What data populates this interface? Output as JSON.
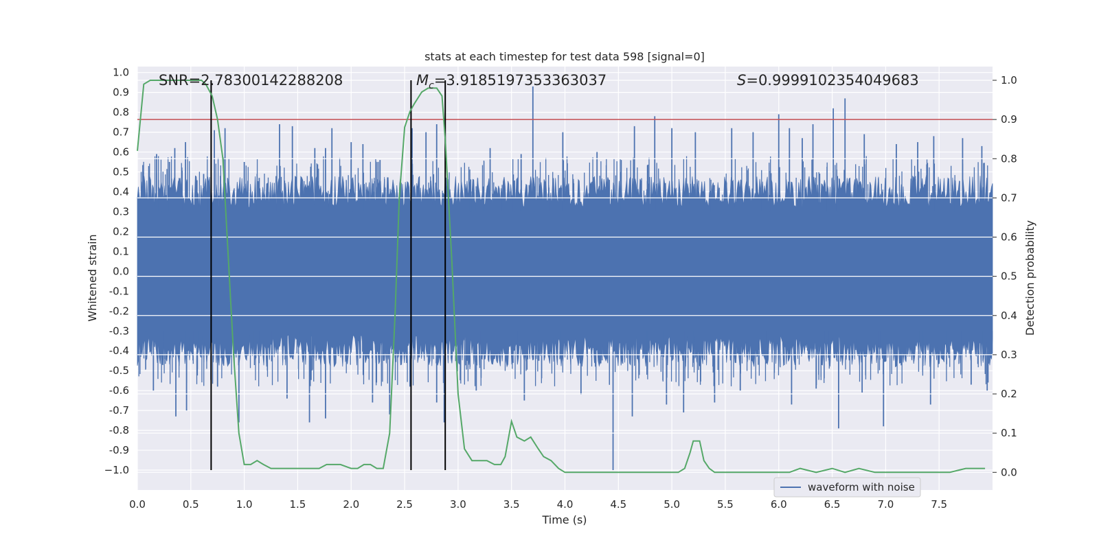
{
  "chart_data": {
    "type": "line",
    "title": "stats at each timestep for test data 598 [signal=0]",
    "xlabel": "Time (s)",
    "ylabel": "Whitened strain",
    "y2label": "Detection probability",
    "xlim": [
      0,
      8
    ],
    "ylim": [
      -1.1,
      1.03
    ],
    "y2lim": [
      -0.045,
      1.035
    ],
    "xticks": [
      "0.0",
      "0.5",
      "1.0",
      "1.5",
      "2.0",
      "2.5",
      "3.0",
      "3.5",
      "4.0",
      "4.5",
      "5.0",
      "5.5",
      "6.0",
      "6.5",
      "7.0",
      "7.5"
    ],
    "yticks": [
      "1.0",
      "0.9",
      "0.8",
      "0.7",
      "0.6",
      "0.5",
      "0.4",
      "0.3",
      "0.2",
      "0.1",
      "0.0",
      "-0.1",
      "-0.2",
      "-0.3",
      "-0.4",
      "-0.5",
      "-0.6",
      "-0.7",
      "-0.8",
      "-0.9",
      "−1.0"
    ],
    "y2ticks": [
      "0.0",
      "0.1",
      "0.2",
      "0.3",
      "0.4",
      "0.5",
      "0.6",
      "0.7",
      "0.8",
      "0.9",
      "1.0"
    ],
    "grid": true,
    "legend": {
      "position": "lower-right",
      "entries": [
        "waveform with noise"
      ]
    },
    "annotations": {
      "snr": "SNR=2.78300142288208",
      "mc_symbol": "M",
      "mc_sub": "c",
      "mc_value": "=3.9185197353363037",
      "s_symbol": "S",
      "s_value": "=0.9999102354049683"
    },
    "threshold": 0.9,
    "vlines": [
      0.69,
      2.56,
      2.88
    ],
    "series": [
      {
        "name": "waveform with noise",
        "color": "#4c72b0",
        "axis": "left",
        "envelope": {
          "upper_typical": 0.38,
          "lower_typical": -0.38,
          "spikes_up": [
            [
              0.05,
              0.5
            ],
            [
              0.18,
              0.59
            ],
            [
              0.3,
              0.55
            ],
            [
              0.35,
              0.62
            ],
            [
              0.45,
              0.65
            ],
            [
              0.62,
              0.49
            ],
            [
              0.72,
              0.71
            ],
            [
              0.82,
              0.72
            ],
            [
              1.0,
              0.55
            ],
            [
              1.14,
              0.47
            ],
            [
              1.33,
              0.74
            ],
            [
              1.45,
              0.73
            ],
            [
              1.66,
              0.62
            ],
            [
              1.76,
              0.62
            ],
            [
              1.82,
              0.72
            ],
            [
              2.0,
              0.65
            ],
            [
              2.11,
              0.64
            ],
            [
              2.27,
              0.56
            ],
            [
              2.57,
              0.72
            ],
            [
              2.7,
              0.7
            ],
            [
              2.8,
              0.74
            ],
            [
              3.3,
              0.62
            ],
            [
              3.59,
              0.59
            ],
            [
              3.7,
              0.93
            ],
            [
              3.98,
              0.7
            ],
            [
              4.3,
              0.6
            ],
            [
              4.65,
              0.73
            ],
            [
              4.84,
              0.78
            ],
            [
              5.0,
              0.72
            ],
            [
              5.22,
              0.7
            ],
            [
              5.56,
              0.72
            ],
            [
              5.76,
              0.7
            ],
            [
              6.0,
              0.79
            ],
            [
              6.1,
              0.72
            ],
            [
              6.22,
              0.67
            ],
            [
              6.32,
              0.74
            ],
            [
              6.51,
              0.82
            ],
            [
              6.62,
              0.87
            ],
            [
              6.8,
              0.69
            ],
            [
              7.1,
              0.64
            ],
            [
              7.3,
              0.65
            ],
            [
              7.45,
              0.68
            ],
            [
              7.72,
              0.67
            ],
            [
              7.9,
              0.63
            ]
          ],
          "spikes_down": [
            [
              0.03,
              -0.43
            ],
            [
              0.15,
              -0.6
            ],
            [
              0.36,
              -0.73
            ],
            [
              0.46,
              -0.7
            ],
            [
              0.75,
              -0.58
            ],
            [
              0.95,
              -0.76
            ],
            [
              1.4,
              -0.64
            ],
            [
              1.61,
              -0.76
            ],
            [
              1.76,
              -0.74
            ],
            [
              2.2,
              -0.66
            ],
            [
              2.36,
              -0.72
            ],
            [
              2.55,
              -0.58
            ],
            [
              2.8,
              -0.66
            ],
            [
              2.87,
              -0.76
            ],
            [
              3.17,
              -0.6
            ],
            [
              3.62,
              -0.65
            ],
            [
              4.15,
              -0.62
            ],
            [
              4.45,
              -1.0
            ],
            [
              4.63,
              -0.73
            ],
            [
              4.95,
              -0.67
            ],
            [
              5.11,
              -0.71
            ],
            [
              5.4,
              -0.66
            ],
            [
              5.64,
              -0.6
            ],
            [
              6.12,
              -0.67
            ],
            [
              6.35,
              -0.59
            ],
            [
              6.56,
              -0.79
            ],
            [
              6.78,
              -0.61
            ],
            [
              6.98,
              -0.78
            ],
            [
              7.42,
              -0.67
            ],
            [
              7.8,
              -0.57
            ],
            [
              7.95,
              -0.6
            ]
          ]
        }
      },
      {
        "name": "",
        "color": "#55a868",
        "axis": "right",
        "x": [
          0.0,
          0.06,
          0.12,
          0.2,
          0.3,
          0.4,
          0.5,
          0.6,
          0.64,
          0.7,
          0.75,
          0.8,
          0.85,
          0.9,
          0.95,
          1.0,
          1.06,
          1.12,
          1.18,
          1.25,
          1.3,
          1.37,
          1.44,
          1.5,
          1.57,
          1.64,
          1.7,
          1.77,
          1.84,
          1.9,
          2.0,
          2.06,
          2.12,
          2.18,
          2.24,
          2.3,
          2.36,
          2.41,
          2.45,
          2.5,
          2.55,
          2.59,
          2.66,
          2.72,
          2.8,
          2.85,
          2.88,
          2.94,
          3.0,
          3.06,
          3.13,
          3.2,
          3.27,
          3.34,
          3.4,
          3.44,
          3.5,
          3.55,
          3.62,
          3.68,
          3.75,
          3.8,
          3.87,
          3.94,
          4.0,
          4.1,
          4.2,
          4.3,
          4.4,
          4.5,
          4.6,
          4.7,
          4.8,
          4.9,
          5.0,
          5.06,
          5.12,
          5.17,
          5.2,
          5.26,
          5.3,
          5.35,
          5.4,
          5.5,
          5.6,
          5.8,
          6.0,
          6.1,
          6.2,
          6.35,
          6.5,
          6.62,
          6.75,
          6.9,
          7.0,
          7.2,
          7.4,
          7.6,
          7.75,
          7.85,
          7.93
        ],
        "y": [
          0.82,
          0.99,
          1.0,
          1.0,
          1.0,
          1.0,
          1.0,
          1.0,
          0.99,
          0.96,
          0.9,
          0.8,
          0.55,
          0.3,
          0.1,
          0.02,
          0.02,
          0.03,
          0.02,
          0.01,
          0.01,
          0.01,
          0.01,
          0.01,
          0.01,
          0.01,
          0.01,
          0.02,
          0.02,
          0.02,
          0.01,
          0.01,
          0.02,
          0.02,
          0.01,
          0.01,
          0.1,
          0.4,
          0.7,
          0.88,
          0.92,
          0.94,
          0.97,
          0.98,
          0.98,
          0.96,
          0.85,
          0.55,
          0.2,
          0.06,
          0.03,
          0.03,
          0.03,
          0.02,
          0.02,
          0.04,
          0.13,
          0.09,
          0.08,
          0.09,
          0.06,
          0.04,
          0.03,
          0.01,
          0.0,
          0.0,
          0.0,
          0.0,
          0.0,
          0.0,
          0.0,
          0.0,
          0.0,
          0.0,
          0.0,
          0.0,
          0.01,
          0.05,
          0.08,
          0.08,
          0.03,
          0.01,
          0.0,
          0.0,
          0.0,
          0.0,
          0.0,
          0.0,
          0.01,
          0.0,
          0.01,
          0.0,
          0.01,
          0.0,
          0.0,
          0.0,
          0.0,
          0.0,
          0.01,
          0.01,
          0.01
        ]
      }
    ]
  }
}
